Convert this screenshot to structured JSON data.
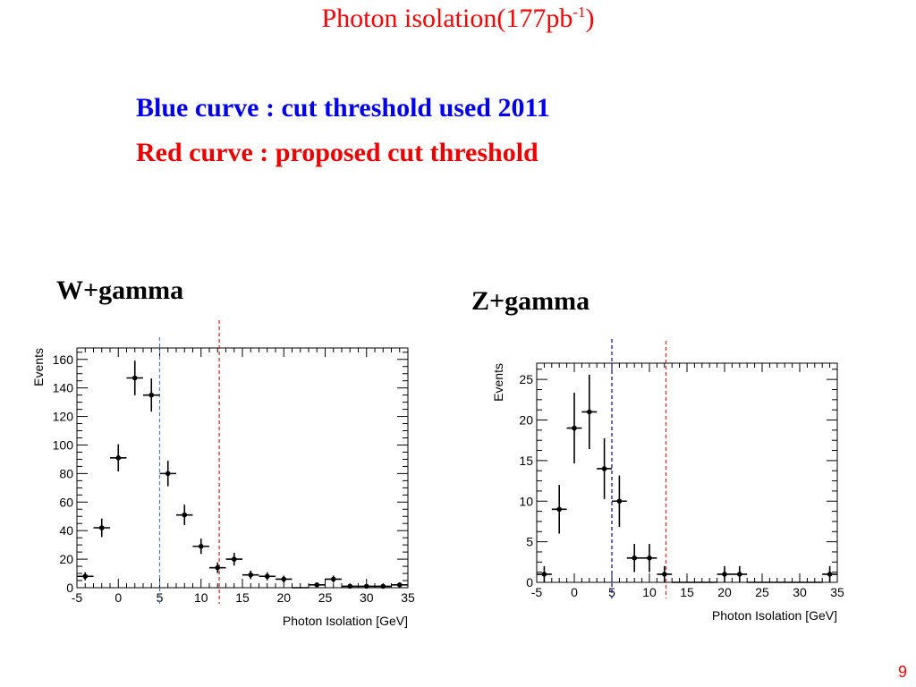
{
  "slide": {
    "title_main": "Photon isolation(177pb",
    "title_sup": "-1",
    "title_end": ")",
    "legend_blue": "Blue curve : cut threshold used 2011",
    "legend_red": "Red curve : proposed cut threshold",
    "page_number": "9",
    "colors": {
      "title": "#ff0000",
      "blue": "#0000ee",
      "red": "#ee0000"
    }
  },
  "chart_data": [
    {
      "id": "wgamma",
      "panel_title": "W+gamma",
      "type": "scatter",
      "xlabel": "Photon Isolation [GeV]",
      "ylabel": "Events",
      "xlim": [
        -5,
        35
      ],
      "ylim": [
        0,
        168
      ],
      "xticks": [
        -5,
        0,
        5,
        10,
        15,
        20,
        25,
        30,
        35
      ],
      "yticks": [
        0,
        20,
        40,
        60,
        80,
        100,
        120,
        140,
        160
      ],
      "bin_width": 2,
      "x": [
        -4,
        -2,
        0,
        2,
        4,
        6,
        8,
        10,
        12,
        14,
        16,
        18,
        20,
        22,
        24,
        26,
        28,
        30,
        32,
        34
      ],
      "y": [
        8,
        42,
        91,
        147,
        135,
        80,
        51,
        29,
        14,
        20,
        9,
        8,
        6,
        0,
        2,
        6,
        1,
        1,
        1,
        2
      ],
      "vlines": [
        {
          "name": "cut threshold used 2011",
          "x": 5,
          "color": "#4a7fd6"
        },
        {
          "name": "proposed cut threshold",
          "x": 12.2,
          "color": "#cc2222"
        }
      ]
    },
    {
      "id": "zgamma",
      "panel_title": "Z+gamma",
      "type": "scatter",
      "xlabel": "Photon Isolation [GeV]",
      "ylabel": "Events",
      "xlim": [
        -5,
        35
      ],
      "ylim": [
        0,
        27
      ],
      "xticks": [
        -5,
        0,
        5,
        10,
        15,
        20,
        25,
        30,
        35
      ],
      "yticks": [
        0,
        5,
        10,
        15,
        20,
        25
      ],
      "bin_width": 2,
      "x": [
        -4,
        -2,
        0,
        2,
        4,
        6,
        8,
        10,
        12,
        14,
        16,
        18,
        20,
        22,
        24,
        26,
        28,
        30,
        32,
        34
      ],
      "y": [
        1,
        9,
        19,
        21,
        14,
        10,
        3,
        3,
        1,
        0,
        0,
        0,
        1,
        1,
        0,
        0,
        0,
        0,
        0,
        1
      ],
      "vlines": [
        {
          "name": "cut threshold used 2011",
          "x": 5,
          "color": "#0000cc"
        },
        {
          "name": "proposed cut threshold",
          "x": 12.2,
          "color": "#dd2222"
        }
      ]
    }
  ]
}
